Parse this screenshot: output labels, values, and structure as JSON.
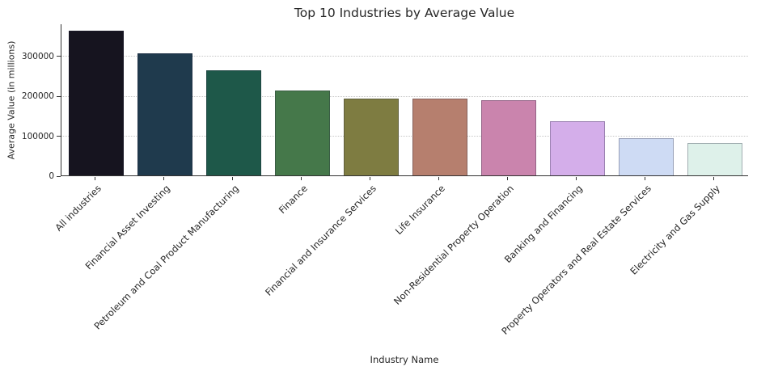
{
  "chart_data": {
    "type": "bar",
    "title": "Top 10 Industries by Average Value",
    "xlabel": "Industry Name",
    "ylabel": "Average Value (in millions)",
    "categories": [
      "All industries",
      "Financial Asset Investing",
      "Petroleum and Coal Product Manufacturing",
      "Finance",
      "Financial and Insurance Services",
      "Life Insurance",
      "Non-Residential Property Operation",
      "Banking and Financing",
      "Property Operators and Real Estate Services",
      "Electricity and Gas Supply"
    ],
    "values": [
      362000,
      306000,
      262000,
      212000,
      193000,
      192000,
      189000,
      136000,
      93000,
      81000
    ],
    "bar_colors": [
      "#16141f",
      "#1f3a4d",
      "#1e5849",
      "#45784a",
      "#7e7c41",
      "#b67f6e",
      "#ca84ad",
      "#d4aeea",
      "#cedbf4",
      "#def1ea"
    ],
    "ylim": [
      0,
      380000
    ],
    "yticks": [
      0,
      100000,
      200000,
      300000
    ],
    "ytick_labels": [
      "0",
      "100000",
      "200000",
      "300000"
    ],
    "grid": "horizontal-dotted",
    "gridline_color": "#c6c6c6",
    "spine_color": "#333333",
    "text_color": "#262626",
    "background": "#ffffff",
    "legend": "none",
    "bar_label_rotation_deg": 45
  }
}
